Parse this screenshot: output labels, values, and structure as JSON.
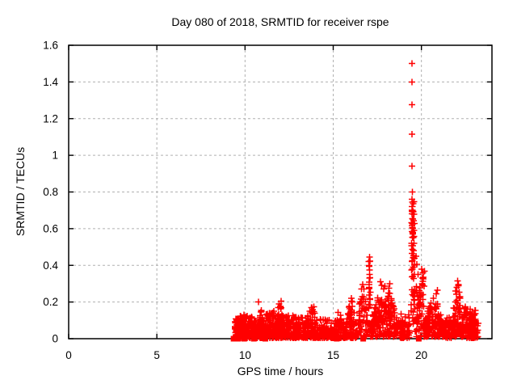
{
  "chart_data": {
    "type": "scatter",
    "title": "Day 080 of 2018, SRMTID for receiver rspe",
    "xlabel": "GPS time / hours",
    "ylabel": "SRMTID / TECUs",
    "xlim": [
      0,
      24
    ],
    "ylim": [
      0,
      1.6
    ],
    "xticks": {
      "values": [
        0,
        5,
        10,
        15,
        20
      ],
      "labels": [
        "0",
        "5",
        "10",
        "15",
        "20"
      ]
    },
    "yticks": {
      "values": [
        0,
        0.2,
        0.4,
        0.6,
        0.8,
        1.0,
        1.2,
        1.4,
        1.6
      ],
      "labels": [
        "0",
        "0.2",
        "0.4",
        "0.6",
        "0.8",
        "1",
        "1.2",
        "1.4",
        "1.6"
      ]
    },
    "grid": true,
    "legend": "none",
    "marker": "plus",
    "series_color": "#ff0000",
    "grid_color": "#b0b0b0",
    "border_color": "#000000",
    "background": "#ffffff",
    "seed": 7,
    "cluster_fields": [
      "x_start",
      "x_end",
      "n_points",
      "y_min",
      "y_max",
      "shape",
      "bottom_bias"
    ],
    "clusters": [
      [
        9.38,
        10.05,
        110,
        0.004,
        0.11,
        "flat",
        2.0
      ],
      [
        9.45,
        10.0,
        15,
        0.004,
        0.135,
        "flat",
        1.0
      ],
      [
        10.05,
        10.7,
        95,
        0.004,
        0.125,
        "flat",
        1.8
      ],
      [
        10.7,
        11.15,
        75,
        0.004,
        0.165,
        "mound",
        1.5
      ],
      [
        11.15,
        11.65,
        85,
        0.004,
        0.15,
        "flat",
        1.7
      ],
      [
        11.65,
        12.3,
        110,
        0.004,
        0.185,
        "mound",
        1.5
      ],
      [
        12.3,
        13.3,
        130,
        0.004,
        0.13,
        "flat",
        1.7
      ],
      [
        13.3,
        14.2,
        110,
        0.004,
        0.175,
        "mound",
        1.6
      ],
      [
        14.2,
        15.0,
        75,
        0.004,
        0.105,
        "flat",
        1.8
      ],
      [
        15.0,
        15.7,
        85,
        0.004,
        0.155,
        "mound",
        1.6
      ],
      [
        15.7,
        16.35,
        85,
        0.004,
        0.21,
        "mound",
        1.5
      ],
      [
        16.35,
        16.98,
        60,
        0.01,
        0.3,
        "mound",
        1.4
      ],
      [
        17.0,
        17.1,
        22,
        0.05,
        0.44,
        "flat",
        1.0
      ],
      [
        17.12,
        18.7,
        200,
        0.01,
        0.29,
        "mound",
        1.2
      ],
      [
        18.7,
        19.38,
        55,
        0.004,
        0.14,
        "flat",
        1.6
      ],
      [
        19.42,
        19.62,
        40,
        0.08,
        0.58,
        "flat",
        1.1
      ],
      [
        19.45,
        19.6,
        22,
        0.55,
        0.76,
        "flat",
        1.0
      ],
      [
        19.62,
        19.98,
        35,
        0.01,
        0.3,
        "flat",
        1.4
      ],
      [
        19.95,
        20.18,
        25,
        0.05,
        0.385,
        "flat",
        1.2
      ],
      [
        20.15,
        21.3,
        150,
        0.01,
        0.23,
        "mound",
        1.4
      ],
      [
        21.3,
        21.75,
        45,
        0.004,
        0.12,
        "flat",
        1.5
      ],
      [
        21.75,
        22.35,
        80,
        0.01,
        0.3,
        "mound",
        1.3
      ],
      [
        22.35,
        22.75,
        55,
        0.004,
        0.19,
        "flat",
        1.5
      ],
      [
        22.75,
        23.08,
        65,
        0.004,
        0.17,
        "flat",
        1.4
      ],
      [
        23.05,
        23.22,
        15,
        0.004,
        0.09,
        "flat",
        1.3
      ]
    ],
    "points": [
      [
        10.77,
        0.2
      ],
      [
        12.05,
        0.205
      ],
      [
        11.92,
        0.19
      ],
      [
        13.9,
        0.175
      ],
      [
        16.02,
        0.22
      ],
      [
        16.68,
        0.295
      ],
      [
        16.75,
        0.27
      ],
      [
        17.05,
        0.445
      ],
      [
        17.05,
        0.42
      ],
      [
        17.04,
        0.4
      ],
      [
        17.06,
        0.375
      ],
      [
        17.05,
        0.35
      ],
      [
        17.68,
        0.31
      ],
      [
        17.75,
        0.29
      ],
      [
        18.2,
        0.3
      ],
      [
        18.15,
        0.275
      ],
      [
        19.47,
        1.5
      ],
      [
        19.47,
        1.4
      ],
      [
        19.46,
        1.275
      ],
      [
        19.47,
        1.115
      ],
      [
        19.47,
        0.94
      ],
      [
        19.48,
        0.8
      ],
      [
        19.46,
        0.76
      ],
      [
        19.48,
        0.745
      ],
      [
        19.47,
        0.72
      ],
      [
        19.49,
        0.7
      ],
      [
        19.46,
        0.68
      ],
      [
        19.48,
        0.655
      ],
      [
        19.47,
        0.63
      ],
      [
        19.49,
        0.605
      ],
      [
        19.46,
        0.585
      ],
      [
        19.52,
        0.57
      ],
      [
        19.7,
        0.45
      ],
      [
        19.73,
        0.405
      ],
      [
        19.8,
        0.35
      ],
      [
        20.02,
        0.38
      ],
      [
        20.06,
        0.33
      ],
      [
        20.9,
        0.265
      ],
      [
        20.85,
        0.245
      ],
      [
        22.05,
        0.315
      ],
      [
        22.1,
        0.295
      ],
      [
        22.0,
        0.28
      ],
      [
        21.95,
        0.26
      ]
    ],
    "zero_marker_squares_x": [
      9.35,
      9.6,
      9.95,
      10.5,
      11.15,
      15.2,
      16.7,
      19.85
    ]
  }
}
